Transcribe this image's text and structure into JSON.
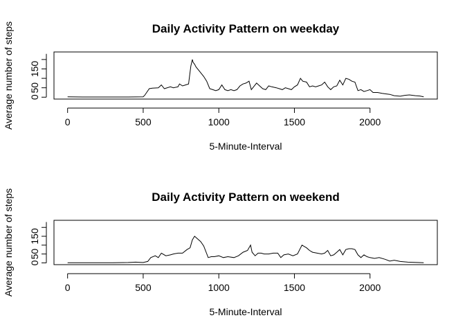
{
  "chart_data": [
    {
      "type": "line",
      "title": "Daily Activity Pattern on weekday",
      "xlabel": "5-Minute-Interval",
      "ylabel": "Average number of steps",
      "xticks": [
        0,
        500,
        1000,
        1500,
        2000
      ],
      "yticks": [
        0,
        50,
        150
      ],
      "xlim": [
        -90,
        2445
      ],
      "ylim": [
        -10,
        240
      ],
      "grid": false,
      "series": [
        {
          "x": [
            0,
            100,
            200,
            300,
            400,
            500,
            510,
            540,
            560,
            600,
            620,
            640,
            680,
            700,
            730,
            740,
            760,
            780,
            800,
            815,
            825,
            830,
            840,
            850,
            870,
            900,
            920,
            940,
            960,
            980,
            1000,
            1020,
            1040,
            1060,
            1080,
            1100,
            1120,
            1140,
            1160,
            1180,
            1200,
            1215,
            1230,
            1250,
            1270,
            1290,
            1310,
            1330,
            1350,
            1380,
            1400,
            1420,
            1440,
            1460,
            1480,
            1500,
            1520,
            1540,
            1555,
            1580,
            1600,
            1620,
            1640,
            1660,
            1680,
            1700,
            1720,
            1740,
            1760,
            1780,
            1800,
            1820,
            1840,
            1860,
            1880,
            1900,
            1920,
            1940,
            1960,
            1980,
            2000,
            2020,
            2050,
            2080,
            2100,
            2130,
            2160,
            2200,
            2230,
            2260,
            2300,
            2330,
            2355
          ],
          "y": [
            2,
            1,
            1,
            1,
            1,
            2,
            10,
            45,
            48,
            50,
            65,
            45,
            55,
            50,
            55,
            70,
            60,
            65,
            70,
            165,
            200,
            185,
            175,
            160,
            140,
            110,
            85,
            45,
            40,
            35,
            40,
            65,
            40,
            35,
            40,
            35,
            40,
            60,
            70,
            75,
            85,
            40,
            55,
            75,
            60,
            45,
            40,
            60,
            55,
            50,
            45,
            40,
            50,
            45,
            40,
            55,
            65,
            100,
            85,
            80,
            55,
            60,
            55,
            60,
            65,
            80,
            55,
            40,
            55,
            60,
            90,
            65,
            100,
            95,
            85,
            80,
            35,
            40,
            30,
            35,
            40,
            25,
            25,
            20,
            18,
            15,
            8,
            5,
            10,
            12,
            8,
            6,
            2
          ]
        }
      ]
    },
    {
      "type": "line",
      "title": "Daily Activity Pattern on weekend",
      "xlabel": "5-Minute-Interval",
      "ylabel": "Average number of steps",
      "xticks": [
        0,
        500,
        1000,
        1500,
        2000
      ],
      "yticks": [
        0,
        50,
        150
      ],
      "xlim": [
        -90,
        2445
      ],
      "ylim": [
        -10,
        240
      ],
      "grid": false,
      "series": [
        {
          "x": [
            0,
            100,
            200,
            300,
            400,
            450,
            500,
            530,
            550,
            580,
            600,
            620,
            650,
            680,
            700,
            730,
            760,
            790,
            810,
            825,
            840,
            860,
            880,
            900,
            930,
            950,
            970,
            1000,
            1030,
            1060,
            1100,
            1130,
            1160,
            1190,
            1210,
            1220,
            1240,
            1260,
            1280,
            1300,
            1330,
            1360,
            1390,
            1410,
            1430,
            1460,
            1490,
            1520,
            1550,
            1580,
            1600,
            1620,
            1650,
            1680,
            1700,
            1720,
            1740,
            1760,
            1780,
            1800,
            1820,
            1840,
            1860,
            1880,
            1900,
            1920,
            1940,
            1960,
            1980,
            2000,
            2030,
            2060,
            2100,
            2130,
            2160,
            2200,
            2250,
            2300,
            2355
          ],
          "y": [
            1,
            1,
            1,
            1,
            2,
            4,
            2,
            8,
            30,
            40,
            30,
            55,
            40,
            45,
            50,
            55,
            55,
            75,
            85,
            130,
            150,
            135,
            120,
            95,
            30,
            35,
            35,
            40,
            30,
            35,
            30,
            40,
            60,
            70,
            100,
            60,
            40,
            55,
            55,
            50,
            50,
            55,
            55,
            30,
            45,
            50,
            40,
            50,
            100,
            85,
            70,
            60,
            55,
            50,
            55,
            70,
            40,
            45,
            60,
            75,
            45,
            75,
            80,
            80,
            75,
            45,
            30,
            45,
            35,
            30,
            25,
            30,
            20,
            10,
            15,
            8,
            4,
            3,
            1
          ]
        }
      ]
    }
  ]
}
